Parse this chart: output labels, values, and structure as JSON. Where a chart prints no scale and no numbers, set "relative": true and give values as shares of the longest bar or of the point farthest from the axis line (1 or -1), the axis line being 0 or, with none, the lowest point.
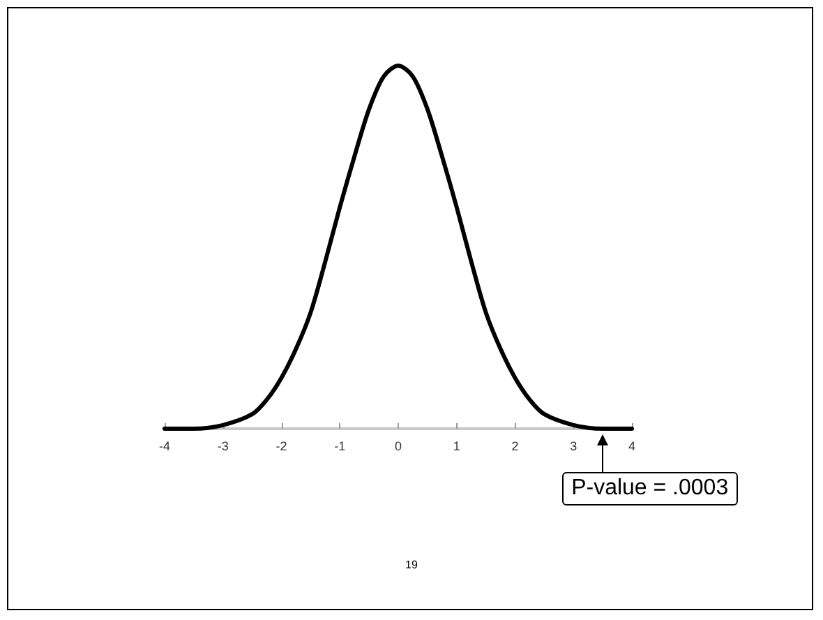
{
  "chart_data": {
    "type": "line",
    "relative": true,
    "x": [
      -4,
      -3.5,
      -3,
      -2.5,
      -2.25,
      -2,
      -1.75,
      -1.5,
      -1.25,
      -1,
      -0.75,
      -0.5,
      -0.25,
      0,
      0.25,
      0.5,
      0.75,
      1,
      1.25,
      1.5,
      1.75,
      2,
      2.25,
      2.5,
      3,
      3.5,
      4
    ],
    "series": [
      {
        "color": "#000000",
        "values": [
          0,
          0,
          0.01,
          0.04,
          0.08,
          0.14,
          0.22,
          0.32,
          0.46,
          0.61,
          0.75,
          0.88,
          0.97,
          1,
          0.97,
          0.88,
          0.75,
          0.61,
          0.46,
          0.32,
          0.22,
          0.14,
          0.08,
          0.04,
          0.01,
          0,
          0
        ]
      }
    ],
    "xlim": [
      -4,
      4
    ],
    "xticks": [
      -4,
      -3,
      -2,
      -1,
      0,
      1,
      2,
      3,
      4
    ],
    "grid": false,
    "marker": "none",
    "line_style": "solid",
    "tick_labels": "x",
    "annotations": [
      {
        "text": "P-value = .0003",
        "x": 3.5,
        "y": 0
      },
      "19"
    ]
  }
}
